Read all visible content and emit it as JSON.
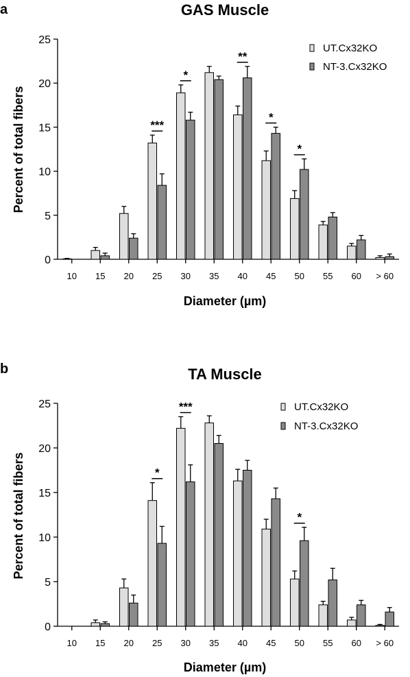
{
  "colors": {
    "ut": "#dedede",
    "nt": "#8a8a8a",
    "stroke": "#000000"
  },
  "chart_data": [
    {
      "type": "bar",
      "panel": "a",
      "title": "GAS Muscle",
      "xlabel": "Diameter (µm)",
      "ylabel": "Percent of total fibers",
      "ylim": [
        0,
        25
      ],
      "yticks": [
        0,
        5,
        10,
        15,
        20,
        25
      ],
      "categories": [
        "10",
        "15",
        "20",
        "25",
        "30",
        "35",
        "40",
        "45",
        "50",
        "55",
        "60",
        "> 60"
      ],
      "legend_position": "top-right",
      "series": [
        {
          "name": "UT.Cx32KO",
          "color": "#dedede",
          "values": [
            0.05,
            1.0,
            5.2,
            13.2,
            18.9,
            21.2,
            16.4,
            11.2,
            6.9,
            3.9,
            1.5,
            0.2
          ],
          "errors": [
            0.05,
            0.35,
            0.8,
            0.9,
            0.9,
            0.7,
            1.0,
            1.1,
            0.9,
            0.4,
            0.3,
            0.2
          ]
        },
        {
          "name": "NT-3.Cx32KO",
          "color": "#8a8a8a",
          "values": [
            0.0,
            0.4,
            2.4,
            8.4,
            15.8,
            20.4,
            20.6,
            14.3,
            10.2,
            4.8,
            2.2,
            0.3
          ],
          "errors": [
            0.0,
            0.3,
            0.5,
            1.3,
            0.9,
            0.4,
            1.3,
            0.7,
            1.2,
            0.5,
            0.5,
            0.3
          ]
        }
      ],
      "annotations": [
        {
          "category": "25",
          "label": "***"
        },
        {
          "category": "30",
          "label": "*"
        },
        {
          "category": "40",
          "label": "**"
        },
        {
          "category": "45",
          "label": "*"
        },
        {
          "category": "50",
          "label": "*"
        }
      ]
    },
    {
      "type": "bar",
      "panel": "b",
      "title": "TA Muscle",
      "xlabel": "Diameter (µm)",
      "ylabel": "Percent of total fibers",
      "ylim": [
        0,
        25
      ],
      "yticks": [
        0,
        5,
        10,
        15,
        20,
        25
      ],
      "categories": [
        "10",
        "15",
        "20",
        "25",
        "30",
        "35",
        "40",
        "45",
        "50",
        "55",
        "60",
        "> 60"
      ],
      "legend_position": "top-right",
      "series": [
        {
          "name": "UT.Cx32KO",
          "color": "#dedede",
          "values": [
            0.0,
            0.4,
            4.3,
            14.1,
            22.2,
            22.8,
            16.3,
            10.9,
            5.3,
            2.4,
            0.7,
            0.1
          ],
          "errors": [
            0.0,
            0.3,
            1.0,
            2.0,
            1.3,
            0.8,
            1.3,
            1.1,
            0.9,
            0.4,
            0.3,
            0.1
          ]
        },
        {
          "name": "NT-3.Cx32KO",
          "color": "#8a8a8a",
          "values": [
            0.0,
            0.3,
            2.6,
            9.3,
            16.2,
            20.5,
            17.5,
            14.3,
            9.6,
            5.2,
            2.4,
            1.6
          ],
          "errors": [
            0.0,
            0.2,
            0.9,
            1.9,
            1.9,
            0.9,
            1.1,
            1.2,
            1.5,
            1.3,
            0.5,
            0.5
          ]
        }
      ],
      "annotations": [
        {
          "category": "25",
          "label": "*"
        },
        {
          "category": "30",
          "label": "***"
        },
        {
          "category": "50",
          "label": "*"
        }
      ]
    }
  ]
}
